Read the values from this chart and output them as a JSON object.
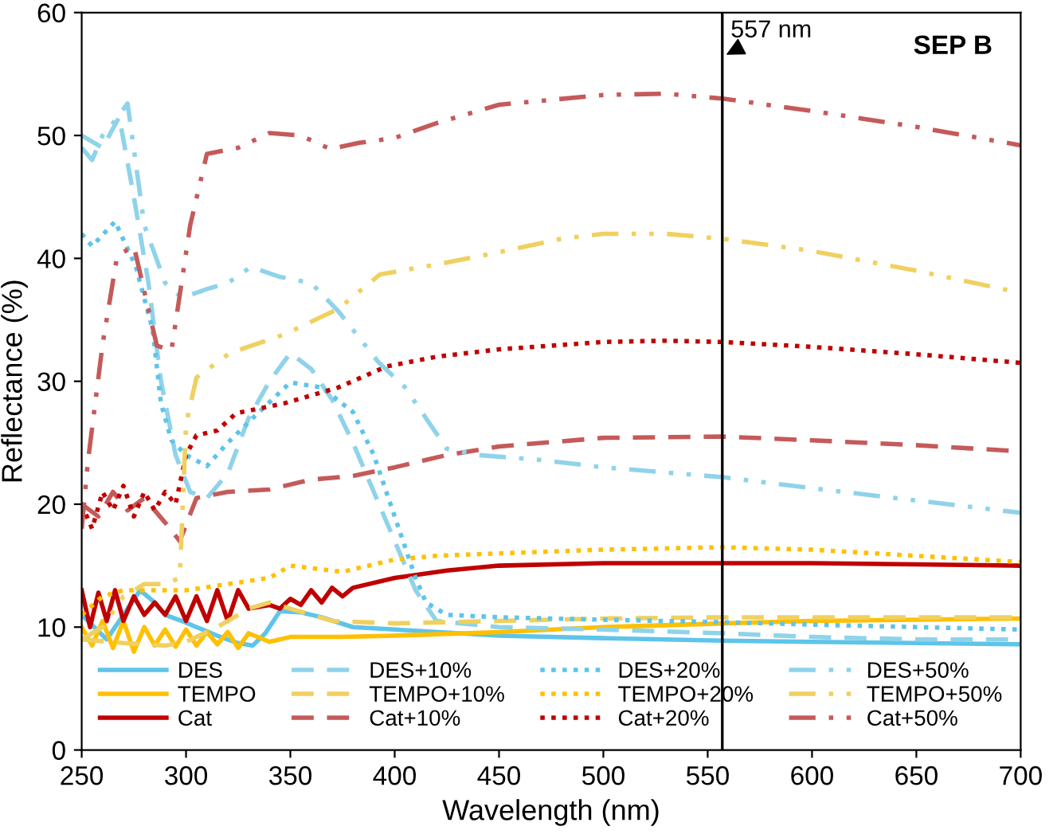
{
  "chart_data": {
    "type": "line",
    "xlabel": "Wavelength (nm)",
    "ylabel": "Reflectance (%)",
    "annotations": [
      "SEP B"
    ],
    "xlim": [
      250,
      700
    ],
    "xticks": [
      250,
      300,
      350,
      400,
      450,
      500,
      550,
      600,
      650,
      700
    ],
    "ylim": [
      0,
      60
    ],
    "yticks": [
      0,
      10,
      20,
      30,
      40,
      50,
      60
    ],
    "grid": false,
    "legend": "bottom",
    "ref_lines": [
      {
        "axis": "x",
        "value": 557,
        "label": "557 nm",
        "color": "#000000"
      }
    ],
    "series": [
      {
        "name": "DES",
        "color": "#5ec4ea",
        "line_style": "solid",
        "x": [
          250,
          256,
          262,
          270,
          278,
          285,
          290,
          298,
          305,
          315,
          325,
          332,
          338,
          345,
          355,
          365,
          380,
          400,
          450,
          500,
          557,
          600,
          650,
          700
        ],
        "values": [
          11,
          10,
          9,
          11,
          13,
          12,
          11,
          10.5,
          10,
          9.3,
          8.7,
          8.5,
          9.5,
          11.3,
          11.2,
          10.8,
          10,
          9.8,
          9.3,
          9.1,
          8.9,
          8.8,
          8.7,
          8.6
        ]
      },
      {
        "name": "TEMPO",
        "color": "#ffc000",
        "line_style": "solid",
        "x": [
          250,
          255,
          260,
          265,
          270,
          275,
          280,
          285,
          290,
          295,
          300,
          305,
          310,
          315,
          320,
          325,
          330,
          340,
          350,
          375,
          400,
          450,
          500,
          557,
          600,
          650,
          700
        ],
        "values": [
          10,
          8.5,
          10.5,
          8.3,
          10.5,
          8,
          10,
          8.5,
          9.8,
          8.4,
          9.8,
          8.5,
          9.6,
          8.6,
          9.6,
          8.3,
          9.5,
          8.8,
          9.2,
          9.2,
          9.3,
          9.6,
          10,
          10.3,
          10.5,
          10.6,
          10.7
        ]
      },
      {
        "name": "Cat",
        "color": "#c00000",
        "line_style": "solid",
        "x": [
          250,
          254,
          258,
          262,
          266,
          270,
          275,
          280,
          285,
          290,
          295,
          300,
          305,
          310,
          315,
          320,
          325,
          330,
          340,
          345,
          350,
          355,
          360,
          365,
          370,
          375,
          380,
          400,
          425,
          450,
          500,
          557,
          600,
          650,
          700
        ],
        "values": [
          13,
          10,
          12.8,
          10.5,
          13,
          10.5,
          12.5,
          11,
          12,
          11,
          12.5,
          10.5,
          12.5,
          10.5,
          13,
          10.5,
          13,
          11.5,
          11.8,
          11.5,
          12.3,
          11.8,
          13,
          12,
          13.2,
          12.5,
          13.2,
          14,
          14.6,
          15,
          15.2,
          15.2,
          15.2,
          15.1,
          15
        ]
      },
      {
        "name": "DES+10%",
        "color": "#8fd3ea",
        "line_style": "dashed",
        "x": [
          250,
          260,
          268,
          275,
          282,
          288,
          295,
          302,
          310,
          320,
          330,
          340,
          350,
          360,
          370,
          380,
          390,
          400,
          410,
          420,
          450,
          500,
          557,
          600,
          650,
          700
        ],
        "values": [
          50,
          49,
          51.5,
          45,
          38,
          30,
          24,
          21,
          20.5,
          22.5,
          27,
          30,
          32.3,
          31,
          28.5,
          25,
          21,
          17,
          13,
          10.5,
          10,
          9.8,
          9.5,
          9.2,
          9,
          9
        ]
      },
      {
        "name": "TEMPO+10%",
        "color": "#f0d060",
        "line_style": "dashed",
        "x": [
          250,
          270,
          290,
          300,
          315,
          330,
          340,
          350,
          360,
          370,
          400,
          450,
          500,
          557,
          600,
          650,
          700
        ],
        "values": [
          9,
          8.7,
          8.5,
          8.8,
          10,
          11.5,
          12,
          11.5,
          11,
          10.5,
          10.3,
          10.5,
          10.7,
          10.8,
          10.8,
          10.8,
          10.8
        ]
      },
      {
        "name": "Cat+10%",
        "color": "#c55a5a",
        "line_style": "dashed",
        "x": [
          250,
          258,
          265,
          272,
          280,
          290,
          297,
          305,
          320,
          340,
          360,
          380,
          400,
          425,
          450,
          500,
          557,
          600,
          650,
          700
        ],
        "values": [
          20,
          19,
          21,
          19.5,
          20.5,
          18.5,
          17,
          20.5,
          21,
          21.2,
          22,
          22.3,
          23,
          24,
          24.7,
          25.4,
          25.5,
          25.2,
          24.8,
          24.3
        ]
      },
      {
        "name": "DES+20%",
        "color": "#5ec4ea",
        "line_style": "dotted",
        "x": [
          250,
          255,
          266,
          276,
          284,
          288,
          293,
          300,
          310,
          320,
          335,
          350,
          365,
          380,
          390,
          400,
          410,
          415,
          425,
          450,
          500,
          557,
          600,
          650,
          700
        ],
        "values": [
          42,
          41,
          43,
          39.3,
          34.2,
          28.2,
          25.2,
          24,
          23.1,
          25,
          27.5,
          29.9,
          29.5,
          27.5,
          24,
          19,
          14,
          12,
          11,
          10.8,
          10.6,
          10.4,
          10.2,
          10,
          9.8
        ]
      },
      {
        "name": "TEMPO+20%",
        "color": "#ffc000",
        "line_style": "dotted",
        "x": [
          250,
          260,
          270,
          280,
          300,
          320,
          340,
          350,
          375,
          400,
          420,
          450,
          500,
          557,
          600,
          650,
          700
        ],
        "values": [
          11,
          12.5,
          13,
          13,
          13,
          13.5,
          14,
          15,
          14.5,
          15.5,
          15.8,
          16,
          16.3,
          16.5,
          16.3,
          15.8,
          15.3
        ]
      },
      {
        "name": "Cat+20%",
        "color": "#c00000",
        "line_style": "dotted",
        "x": [
          250,
          255,
          260,
          265,
          270,
          275,
          280,
          285,
          290,
          295,
          300,
          305,
          315,
          324,
          347,
          373,
          396,
          420,
          450,
          500,
          530,
          557,
          600,
          650,
          700
        ],
        "values": [
          20,
          18,
          21,
          19.5,
          21.5,
          19,
          21,
          19.5,
          21,
          20,
          24,
          25.6,
          26,
          27.4,
          28.2,
          29.5,
          31.2,
          32,
          32.6,
          33.2,
          33.3,
          33.2,
          32.8,
          32.2,
          31.5
        ]
      },
      {
        "name": "DES+50%",
        "color": "#8fd3ea",
        "line_style": "dashdot",
        "x": [
          250,
          255,
          260,
          265,
          272,
          280,
          290,
          298,
          310,
          320,
          331,
          345,
          360,
          373,
          392,
          405,
          415,
          425,
          440,
          470,
          500,
          557,
          600,
          650,
          700
        ],
        "values": [
          49,
          48,
          50,
          51,
          52.6,
          42.7,
          38,
          36.8,
          37.5,
          38,
          39.3,
          38.5,
          38,
          35.7,
          31.6,
          29.5,
          27,
          24.5,
          24,
          23.6,
          23,
          22.2,
          21.3,
          20.3,
          19.3
        ]
      },
      {
        "name": "TEMPO+50%",
        "color": "#f0d060",
        "line_style": "dashdot",
        "x": [
          250,
          260,
          270,
          280,
          290,
          297,
          300,
          305,
          321,
          347,
          373,
          393,
          420,
          450,
          480,
          500,
          530,
          557,
          600,
          650,
          700
        ],
        "values": [
          9,
          10,
          12.5,
          13.5,
          13.5,
          14,
          26.5,
          30.3,
          32.3,
          33.8,
          35.9,
          38.7,
          39.5,
          40.5,
          41.6,
          42,
          42,
          41.6,
          40.6,
          39,
          37.2
        ]
      },
      {
        "name": "Cat+50%",
        "color": "#c55a5a",
        "line_style": "dashdot",
        "x": [
          250,
          253,
          260,
          267,
          275,
          286,
          293,
          302,
          310,
          325,
          340,
          355,
          369,
          383,
          400,
          420,
          450,
          500,
          530,
          557,
          600,
          650,
          700
        ],
        "values": [
          18,
          23.5,
          33,
          40.2,
          41,
          32.9,
          32.5,
          42.7,
          48.5,
          49,
          50.2,
          50,
          48.9,
          49.4,
          49.8,
          51,
          52.5,
          53.3,
          53.4,
          53,
          52,
          50.7,
          49.2
        ]
      }
    ]
  }
}
